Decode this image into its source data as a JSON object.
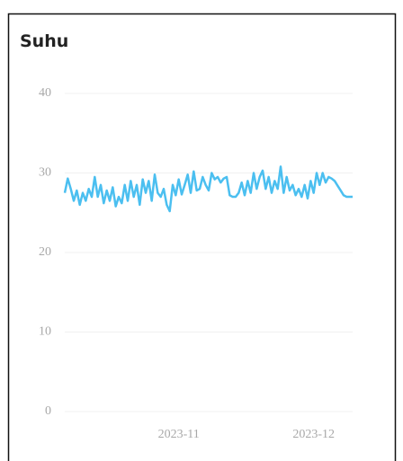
{
  "chart_data": {
    "type": "line",
    "title": "Suhu",
    "categories": [
      null,
      null,
      null,
      null,
      null,
      null,
      null,
      null,
      null,
      null,
      null,
      null,
      null,
      null,
      null,
      null,
      null,
      null,
      null,
      null,
      null,
      null,
      null,
      null,
      null,
      null,
      null,
      null,
      null,
      null,
      null,
      null,
      null,
      null,
      null,
      null,
      null,
      null,
      "2023-11",
      null,
      null,
      null,
      null,
      null,
      null,
      null,
      null,
      null,
      null,
      null,
      null,
      null,
      null,
      null,
      null,
      null,
      null,
      null,
      null,
      null,
      null,
      null,
      null,
      null,
      null,
      null,
      null,
      null,
      null,
      null,
      null,
      null,
      null,
      null,
      null,
      null,
      null,
      null,
      null,
      null,
      null,
      null,
      null,
      "2023-12",
      null,
      null,
      null,
      null,
      null,
      null,
      null,
      null,
      null,
      null,
      null,
      null,
      null
    ],
    "values": [
      27.5,
      29.3,
      28,
      26.5,
      27.8,
      26,
      27.5,
      26.5,
      28,
      27,
      29.5,
      27,
      28.5,
      26.2,
      27.8,
      26.5,
      28.2,
      25.8,
      27,
      26.2,
      28.5,
      26.5,
      29,
      27,
      28.5,
      26,
      29.2,
      27.5,
      29,
      26.5,
      29.8,
      27.5,
      27,
      28,
      26,
      25.2,
      28.5,
      27.2,
      29.2,
      27.3,
      28.5,
      29.8,
      27.5,
      30.2,
      27.8,
      28,
      29.5,
      28.5,
      27.8,
      30,
      29.2,
      29.5,
      28.8,
      29.3,
      29.5,
      27.2,
      27,
      27,
      27.5,
      28.8,
      27.2,
      29,
      27.5,
      30,
      28,
      29.5,
      30.3,
      28,
      29.5,
      27.5,
      29,
      28,
      30.8,
      27.5,
      29.5,
      27.8,
      28.5,
      27.2,
      28,
      27,
      28.5,
      26.8,
      29,
      27.5,
      30,
      28.5,
      30,
      28.8,
      29.5,
      29.3,
      29,
      28.4,
      27.8,
      27.2,
      27,
      27,
      27
    ],
    "color": "#4bbff0",
    "ylim": [
      0,
      40
    ],
    "yticks": [
      0,
      10,
      20,
      30,
      40
    ],
    "grid": true
  }
}
